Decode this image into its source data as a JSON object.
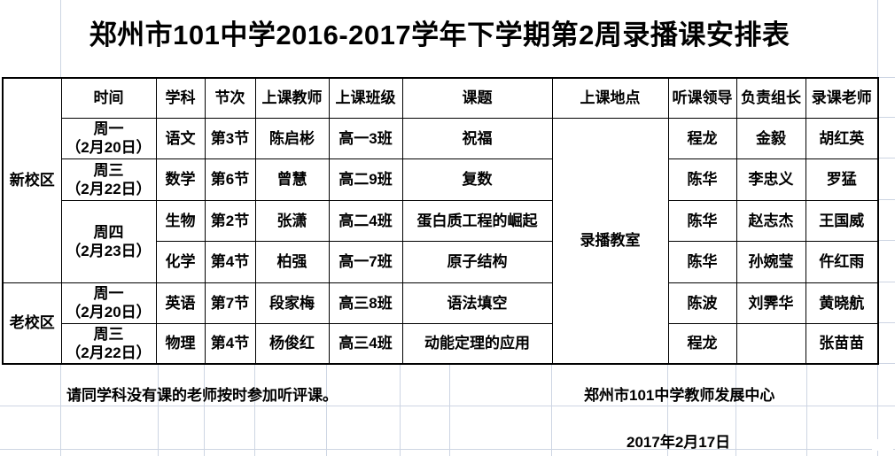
{
  "title": "郑州市101中学2016-2017学年下学期第2周录播课安排表",
  "colors": {
    "background": "#ffffff",
    "table_border": "#000000",
    "sheet_gridline": "#cdd5e3",
    "text": "#000000"
  },
  "table": {
    "headers": {
      "time": "时间",
      "subject": "学科",
      "period": "节次",
      "teacher": "上课教师",
      "class": "上课班级",
      "topic": "课题",
      "location": "上课地点",
      "leader": "听课领导",
      "group_leader": "负责组长",
      "recorder": "录课老师"
    },
    "campus": {
      "new": "新校区",
      "old": "老校区"
    },
    "location_value": "录播教室",
    "rows": [
      {
        "day": "周一",
        "date": "（2月20日）",
        "subject": "语文",
        "period": "第3节",
        "teacher": "陈启彬",
        "class": "高一3班",
        "topic": "祝福",
        "leader": "程龙",
        "group_leader": "金毅",
        "recorder": "胡红英"
      },
      {
        "day": "周三",
        "date": "（2月22日）",
        "subject": "数学",
        "period": "第6节",
        "teacher": "曾慧",
        "class": "高二9班",
        "topic": "复数",
        "leader": "陈华",
        "group_leader": "李忠义",
        "recorder": "罗猛"
      },
      {
        "day": "周四",
        "date": "（2月23日）",
        "subject": "生物",
        "period": "第2节",
        "teacher": "张潇",
        "class": "高二4班",
        "topic": "蛋白质工程的崛起",
        "leader": "陈华",
        "group_leader": "赵志杰",
        "recorder": "王国威"
      },
      {
        "subject": "化学",
        "period": "第4节",
        "teacher": "柏强",
        "class": "高一7班",
        "topic": "原子结构",
        "leader": "陈华",
        "group_leader": "孙婉莹",
        "recorder": "仵红雨"
      },
      {
        "day": "周一",
        "date": "（2月20日）",
        "subject": "英语",
        "period": "第7节",
        "teacher": "段家梅",
        "class": "高三8班",
        "topic": "语法填空",
        "leader": "陈波",
        "group_leader": "刘霁华",
        "recorder": "黄晓航"
      },
      {
        "day": "周三",
        "date": "（2月22日）",
        "subject": "物理",
        "period": "第4节",
        "teacher": "杨俊红",
        "class": "高三4班",
        "topic": "动能定理的应用",
        "leader": "程龙",
        "group_leader": "",
        "recorder": "张苗苗"
      }
    ]
  },
  "footer": {
    "note": "请同学科没有课的老师按时参加听评课。",
    "org": "郑州市101中学教师发展中心",
    "date": "2017年2月17日"
  }
}
